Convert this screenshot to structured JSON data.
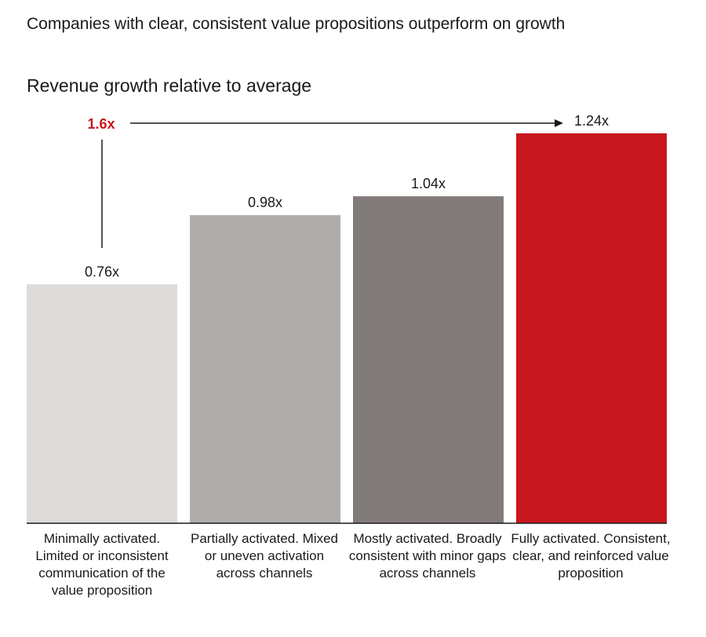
{
  "title": "Companies with clear, consistent value propositions outperform on growth",
  "subtitle": "Revenue growth relative to average",
  "annotation": {
    "multiplier_label": "1.6x"
  },
  "colors": {
    "accent": "#c8171e",
    "bar1": "#dddcdb",
    "bar2": "#afacaa",
    "bar3": "#817c79",
    "bar4": "#c8171e"
  },
  "chart_data": {
    "type": "bar",
    "categories": [
      "Minimally activated. Limited or inconsistent communication of the value proposition",
      "Partially activated. Mixed or uneven activation across channels",
      "Mostly activated. Broadly consistent with minor gaps across channels",
      "Fully activated. Consistent, clear, and reinforced value proposition"
    ],
    "values": [
      0.76,
      0.98,
      1.04,
      1.24
    ],
    "data_labels": [
      "0.76x",
      "0.98x",
      "1.04x",
      "1.24x"
    ],
    "title": "Companies with clear, consistent value propositions outperform on growth",
    "ylabel": "Revenue growth relative to average",
    "ylim": [
      0,
      1.24
    ],
    "grid": false
  }
}
